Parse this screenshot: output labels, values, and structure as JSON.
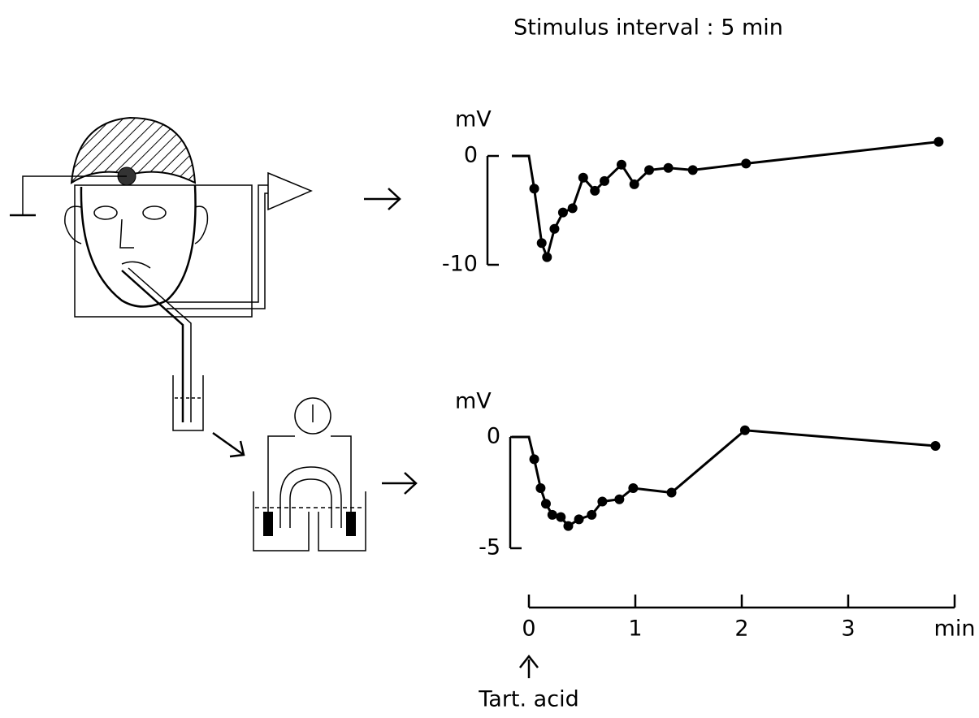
{
  "chart_data": [
    {
      "type": "line",
      "title": "Stimulus interval : 5 min",
      "ylabel": "mV",
      "ylim": [
        -10,
        0
      ],
      "yticks": [
        0,
        -10
      ],
      "xlim": [
        0,
        4
      ],
      "color": "#000000",
      "x": [
        -0.16,
        0,
        0.05,
        0.12,
        0.17,
        0.24,
        0.32,
        0.41,
        0.51,
        0.62,
        0.71,
        0.87,
        0.99,
        1.13,
        1.31,
        1.54,
        2.04,
        3.85
      ],
      "values": [
        0,
        0,
        -3.0,
        -8.0,
        -9.3,
        -6.7,
        -5.2,
        -4.8,
        -2.0,
        -3.2,
        -2.3,
        -0.8,
        -2.6,
        -1.3,
        -1.1,
        -1.3,
        -0.7,
        1.3
      ]
    },
    {
      "type": "line",
      "ylabel": "mV",
      "ylim": [
        -5,
        0
      ],
      "yticks": [
        0,
        -5
      ],
      "xlim": [
        0,
        4
      ],
      "xticks": [
        0,
        1,
        2,
        3,
        {
          "value": 4,
          "label": "min"
        }
      ],
      "color": "#000000",
      "annotation": "Tart. acid",
      "x": [
        -0.16,
        0,
        0.05,
        0.11,
        0.16,
        0.22,
        0.3,
        0.37,
        0.47,
        0.59,
        0.69,
        0.85,
        0.98,
        1.34,
        2.03,
        3.82
      ],
      "values": [
        0,
        0,
        -1.0,
        -2.3,
        -3.0,
        -3.5,
        -3.6,
        -4.0,
        -3.7,
        -3.5,
        -2.9,
        -2.8,
        -2.3,
        -2.5,
        0.3,
        -0.4
      ]
    }
  ]
}
